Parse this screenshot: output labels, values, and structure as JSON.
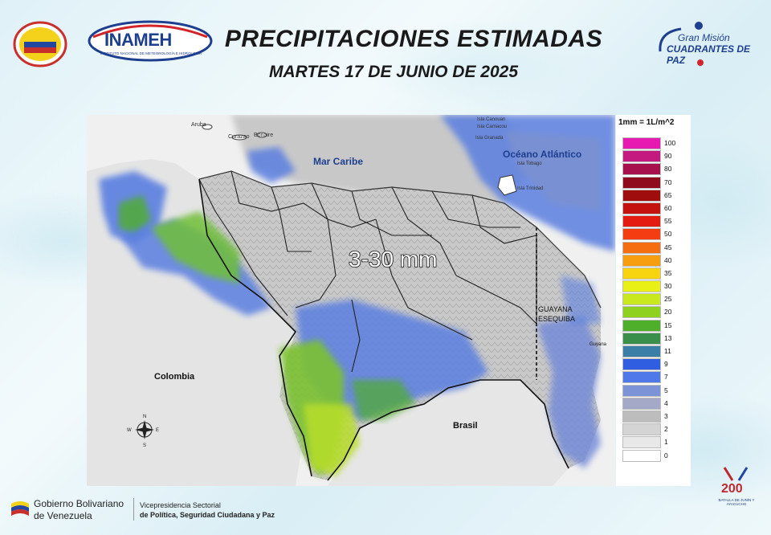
{
  "header": {
    "title": "PRECIPITACIONES ESTIMADAS",
    "date": "MARTES 17 DE JUNIO DE 2025"
  },
  "logos": {
    "inameh_text": "INAMEH",
    "inameh_sub": "INSTITUTO NACIONAL DE METEOROLOGÍA E HIDROLOGÍA",
    "gmcp_line1": "Gran Misión",
    "gmcp_line2": "CUADRANTES DE PAZ",
    "bicentennial_number": "200",
    "bicentennial_sub": "BATALLA DE JUNÍN Y AYACUCHO"
  },
  "map": {
    "range_label": "3-30 mm",
    "labels": {
      "mar_caribe": "Mar Caribe",
      "oceano_atlantico": "Océano Atlántico",
      "colombia": "Colombia",
      "brasil": "Brasil",
      "guayana_1": "GUAYANA",
      "guayana_2": "ESEQUIBA",
      "guyana": "Guyana",
      "aruba": "Aruba",
      "curazao": "Curazao",
      "bonaire": "Bonaire",
      "canouan": "Isla Canouan",
      "carriacou": "Isla Carriacou",
      "granada": "Isla Granada",
      "tobago": "Isla Tobago",
      "trinidad": "Isla Trinidad"
    },
    "compass": {
      "n": "N",
      "s": "S",
      "e": "E",
      "w": "W"
    }
  },
  "legend": {
    "unit_note": "1mm = 1L/m^2",
    "items": [
      {
        "label": "100",
        "color": "#e619b0"
      },
      {
        "label": "90",
        "color": "#c4197e"
      },
      {
        "label": "80",
        "color": "#a6104c"
      },
      {
        "label": "70",
        "color": "#8e0a1c"
      },
      {
        "label": "65",
        "color": "#a00d0d"
      },
      {
        "label": "60",
        "color": "#c4120e"
      },
      {
        "label": "55",
        "color": "#e31b10"
      },
      {
        "label": "50",
        "color": "#f53d12"
      },
      {
        "label": "45",
        "color": "#f56f12"
      },
      {
        "label": "40",
        "color": "#f79e10"
      },
      {
        "label": "35",
        "color": "#f7d40f"
      },
      {
        "label": "30",
        "color": "#e9f016"
      },
      {
        "label": "25",
        "color": "#c9e81e"
      },
      {
        "label": "20",
        "color": "#8ed11f"
      },
      {
        "label": "15",
        "color": "#4fae2a"
      },
      {
        "label": "13",
        "color": "#3a8f4a"
      },
      {
        "label": "11",
        "color": "#3b7ea6"
      },
      {
        "label": "9",
        "color": "#2f5fe0"
      },
      {
        "label": "7",
        "color": "#4f78e8"
      },
      {
        "label": "5",
        "color": "#7d93d8"
      },
      {
        "label": "4",
        "color": "#a3a9c6"
      },
      {
        "label": "3",
        "color": "#bdbdbd"
      },
      {
        "label": "2",
        "color": "#d4d4d4"
      },
      {
        "label": "1",
        "color": "#e8e8e8"
      },
      {
        "label": "0",
        "color": "#ffffff"
      }
    ]
  },
  "footer": {
    "gob_line1": "Gobierno Bolivariano",
    "gob_line2": "de Venezuela",
    "vice_line1": "Vicepresidencia Sectorial",
    "vice_line2": "de Política, Seguridad Ciudadana y Paz"
  }
}
